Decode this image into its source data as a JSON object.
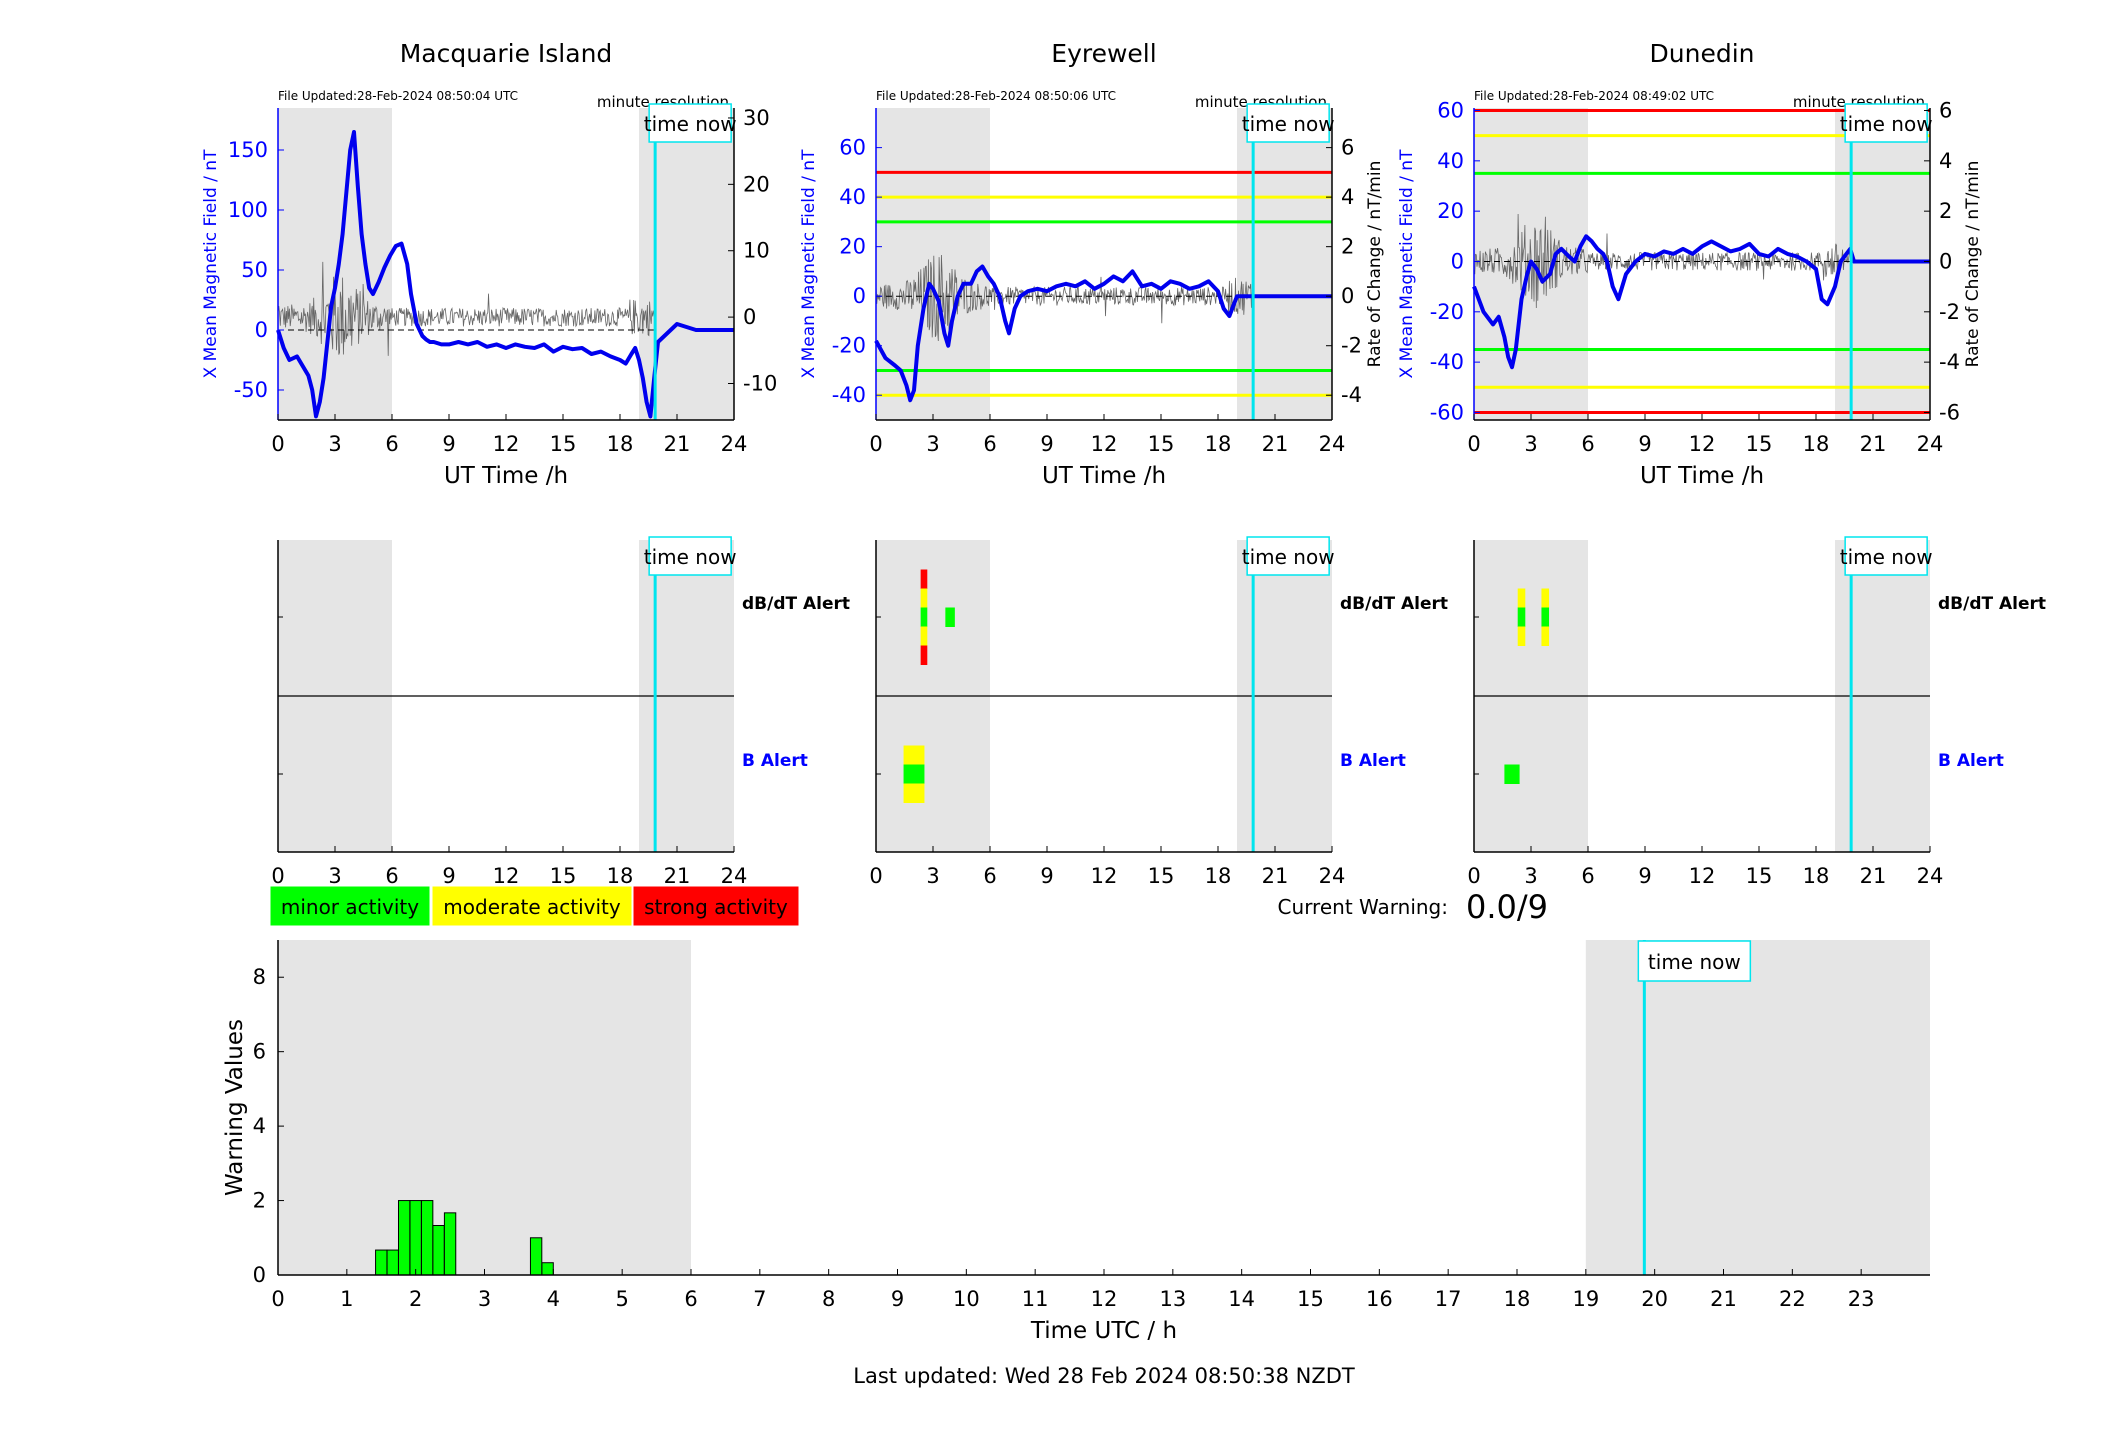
{
  "stations": [
    {
      "name": "Macquarie Island",
      "file_updated": "File Updated:28-Feb-2024 08:50:04 UTC",
      "resolution": "minute resolution",
      "time_now_label": "time now",
      "ylabel_left": "X Mean Magnetic Field / nT",
      "ylabel_right": "",
      "xlabel": "UT Time /h",
      "left_ticks": [
        "-50",
        "0",
        "50",
        "100",
        "150"
      ],
      "right_ticks": [
        "-10",
        "0",
        "10",
        "20",
        "30"
      ],
      "x_ticks": [
        "0",
        "3",
        "6",
        "9",
        "12",
        "15",
        "18",
        "21",
        "24"
      ],
      "ylim_left": [
        -75,
        185
      ],
      "ylim_right": [
        -15.5,
        31.5
      ],
      "thresholds": [],
      "alert_labels": {
        "dbdt": "dB/dT Alert",
        "b": "B Alert"
      },
      "alert_bars": []
    },
    {
      "name": "Eyrewell",
      "file_updated": "File Updated:28-Feb-2024 08:50:06 UTC",
      "resolution": "minute resolution",
      "time_now_label": "time now",
      "ylabel_left": "X Mean Magnetic Field / nT",
      "ylabel_right": "Rate of Change / nT/min",
      "xlabel": "UT Time /h",
      "left_ticks": [
        "-40",
        "-20",
        "0",
        "20",
        "40",
        "60"
      ],
      "right_ticks": [
        "-4",
        "-2",
        "0",
        "2",
        "4",
        "6"
      ],
      "x_ticks": [
        "0",
        "3",
        "6",
        "9",
        "12",
        "15",
        "18",
        "21",
        "24"
      ],
      "ylim_left": [
        -50,
        76
      ],
      "ylim_right": [
        -5,
        7.6
      ],
      "thresholds": [
        {
          "value": 50,
          "color": "#ff0000"
        },
        {
          "value": 40,
          "color": "#ffff00"
        },
        {
          "value": 30,
          "color": "#00ff00"
        },
        {
          "value": -30,
          "color": "#00ff00"
        },
        {
          "value": -40,
          "color": "#ffff00"
        }
      ],
      "alert_labels": {
        "dbdt": "dB/dT Alert",
        "b": "B Alert"
      },
      "alert_bars": [
        {
          "row": "dbdt",
          "t0": 2.35,
          "t1": 2.7,
          "levels": [
            "#ff0000",
            "#ffff00",
            "#00ff00",
            "#ffff00",
            "#ff0000"
          ]
        },
        {
          "row": "dbdt",
          "t0": 3.65,
          "t1": 4.15,
          "levels": [
            "#00ff00"
          ]
        },
        {
          "row": "b",
          "t0": 1.45,
          "t1": 2.55,
          "levels": [
            "#ffff00",
            "#00ff00",
            "#ffff00"
          ]
        }
      ]
    },
    {
      "name": "Dunedin",
      "file_updated": "File Updated:28-Feb-2024 08:49:02 UTC",
      "resolution": "minute resolution",
      "time_now_label": "time now",
      "ylabel_left": "X Mean Magnetic Field / nT",
      "ylabel_right": "Rate of Change / nT/min",
      "xlabel": "UT Time /h",
      "left_ticks": [
        "-60",
        "-40",
        "-20",
        "0",
        "20",
        "40",
        "60"
      ],
      "right_ticks": [
        "-6",
        "-4",
        "-2",
        "0",
        "2",
        "4",
        "6"
      ],
      "x_ticks": [
        "0",
        "3",
        "6",
        "9",
        "12",
        "15",
        "18",
        "21",
        "24"
      ],
      "ylim_left": [
        -63,
        61
      ],
      "ylim_right": [
        -6.3,
        6.1
      ],
      "thresholds": [
        {
          "value": 60,
          "color": "#ff0000"
        },
        {
          "value": 50,
          "color": "#ffff00"
        },
        {
          "value": 35,
          "color": "#00ff00"
        },
        {
          "value": -35,
          "color": "#00ff00"
        },
        {
          "value": -50,
          "color": "#ffff00"
        },
        {
          "value": -60,
          "color": "#ff0000"
        }
      ],
      "alert_labels": {
        "dbdt": "dB/dT Alert",
        "b": "B Alert"
      },
      "alert_bars": [
        {
          "row": "dbdt",
          "t0": 2.3,
          "t1": 2.7,
          "levels": [
            "#ffff00",
            "#00ff00",
            "#ffff00"
          ]
        },
        {
          "row": "dbdt",
          "t0": 3.55,
          "t1": 3.95,
          "levels": [
            "#ffff00",
            "#00ff00",
            "#ffff00"
          ]
        },
        {
          "row": "b",
          "t0": 1.6,
          "t1": 2.4,
          "levels": [
            "#00ff00"
          ]
        }
      ]
    }
  ],
  "shading": {
    "night_ranges": [
      [
        0,
        6
      ],
      [
        19,
        24
      ]
    ],
    "time_now": 19.85
  },
  "legend": [
    {
      "label": "minor activity",
      "color": "#00ff00"
    },
    {
      "label": "moderate activity",
      "color": "#ffff00"
    },
    {
      "label": "strong activity",
      "color": "#ff0000"
    }
  ],
  "current_warning": {
    "label": "Current Warning:",
    "value": "0.0/9"
  },
  "last_updated": "Last updated: Wed 28 Feb 2024 08:50:38 NZDT",
  "chart_data": [
    {
      "type": "line",
      "title": "Macquarie Island",
      "xlabel": "UT Time /h",
      "ylabel": "X Mean Magnetic Field / nT",
      "xlim": [
        0,
        24
      ],
      "ylim": [
        -75,
        185
      ],
      "series": [
        {
          "x": [
            0,
            0.3,
            0.6,
            1.0,
            1.3,
            1.6,
            1.8,
            2.0,
            2.2,
            2.4,
            2.6,
            2.8,
            3.0,
            3.2,
            3.4,
            3.6,
            3.8,
            4.0,
            4.2,
            4.4,
            4.6,
            4.8,
            5.0,
            5.3,
            5.6,
            5.9,
            6.2,
            6.5,
            6.8,
            7.0,
            7.3,
            7.6,
            7.8,
            8.0,
            8.2,
            8.6,
            9.0,
            9.5,
            10.0,
            10.5,
            11.0,
            11.5,
            12.0,
            12.5,
            13.0,
            13.5,
            14.0,
            14.5,
            15.0,
            15.5,
            16.0,
            16.5,
            17.0,
            17.5,
            18.0,
            18.3,
            18.6,
            18.8,
            19.0,
            19.2,
            19.4,
            19.6,
            19.8,
            20.0,
            21.0,
            22.0,
            23.0,
            24.0
          ],
          "y": [
            0,
            -15,
            -25,
            -22,
            -30,
            -38,
            -50,
            -72,
            -60,
            -40,
            -10,
            20,
            35,
            55,
            80,
            115,
            150,
            165,
            120,
            80,
            55,
            35,
            30,
            40,
            52,
            62,
            70,
            72,
            55,
            30,
            5,
            -5,
            -8,
            -10,
            -10,
            -12,
            -12,
            -10,
            -12,
            -10,
            -14,
            -12,
            -15,
            -12,
            -14,
            -15,
            -12,
            -18,
            -14,
            -16,
            -15,
            -20,
            -18,
            -22,
            -25,
            -28,
            -20,
            -15,
            -25,
            -40,
            -60,
            -72,
            -40,
            -10,
            5,
            0,
            0,
            0
          ]
        }
      ]
    },
    {
      "type": "line",
      "title": "Eyrewell",
      "xlabel": "UT Time /h",
      "ylabel": "X Mean Magnetic Field / nT",
      "xlim": [
        0,
        24
      ],
      "ylim": [
        -50,
        76
      ],
      "series": [
        {
          "x": [
            0,
            0.5,
            1.0,
            1.3,
            1.6,
            1.8,
            2.0,
            2.2,
            2.5,
            2.8,
            3.0,
            3.3,
            3.6,
            3.8,
            4.0,
            4.3,
            4.6,
            5.0,
            5.3,
            5.6,
            5.9,
            6.2,
            6.5,
            6.8,
            7.0,
            7.3,
            7.6,
            8.0,
            8.5,
            9.0,
            9.5,
            10.0,
            10.5,
            11.0,
            11.5,
            12.0,
            12.5,
            13.0,
            13.5,
            14.0,
            14.5,
            15.0,
            15.5,
            16.0,
            16.5,
            17.0,
            17.5,
            18.0,
            18.3,
            18.6,
            19.0,
            19.3,
            19.6,
            19.8,
            20.0,
            21.0,
            22.0,
            23.0,
            24.0
          ],
          "y": [
            -18,
            -25,
            -28,
            -30,
            -36,
            -42,
            -38,
            -20,
            -5,
            5,
            3,
            -2,
            -15,
            -20,
            -10,
            0,
            5,
            5,
            10,
            12,
            8,
            5,
            0,
            -10,
            -15,
            -5,
            0,
            2,
            3,
            2,
            4,
            5,
            4,
            6,
            3,
            5,
            8,
            6,
            10,
            4,
            5,
            3,
            6,
            5,
            3,
            4,
            6,
            2,
            -5,
            -8,
            0,
            0,
            0,
            0,
            0,
            0,
            0,
            0,
            0
          ]
        }
      ]
    },
    {
      "type": "line",
      "title": "Dunedin",
      "xlabel": "UT Time /h",
      "ylabel": "X Mean Magnetic Field / nT",
      "xlim": [
        0,
        24
      ],
      "ylim": [
        -63,
        61
      ],
      "series": [
        {
          "x": [
            0,
            0.5,
            1.0,
            1.3,
            1.6,
            1.8,
            2.0,
            2.2,
            2.5,
            2.8,
            3.0,
            3.3,
            3.6,
            4.0,
            4.3,
            4.6,
            5.0,
            5.3,
            5.6,
            5.9,
            6.2,
            6.5,
            6.8,
            7.0,
            7.3,
            7.6,
            8.0,
            8.5,
            9.0,
            9.5,
            10.0,
            10.5,
            11.0,
            11.5,
            12.0,
            12.5,
            13.0,
            13.5,
            14.0,
            14.5,
            15.0,
            15.5,
            16.0,
            16.5,
            17.0,
            17.5,
            18.0,
            18.3,
            18.6,
            19.0,
            19.3,
            19.6,
            19.8,
            20.0,
            21.0,
            22.0,
            23.0,
            24.0
          ],
          "y": [
            -10,
            -20,
            -25,
            -22,
            -30,
            -38,
            -42,
            -35,
            -15,
            -5,
            0,
            -3,
            -8,
            -5,
            3,
            5,
            2,
            0,
            6,
            10,
            8,
            5,
            3,
            0,
            -10,
            -15,
            -5,
            0,
            3,
            2,
            4,
            3,
            5,
            3,
            6,
            8,
            6,
            4,
            5,
            7,
            3,
            2,
            5,
            3,
            2,
            0,
            -3,
            -15,
            -17,
            -10,
            0,
            3,
            5,
            0,
            0,
            0,
            0,
            0
          ]
        }
      ]
    },
    {
      "type": "bar",
      "title": "",
      "xlabel": "Time UTC / h",
      "ylabel": "Warning Values",
      "xlim": [
        0,
        24
      ],
      "ylim": [
        0,
        9
      ],
      "bar_width": 0.165,
      "x": [
        1.5,
        1.667,
        1.833,
        2.0,
        2.167,
        2.333,
        2.5,
        3.75,
        3.917
      ],
      "values": [
        0.67,
        0.67,
        2,
        2,
        2,
        1.33,
        1.67,
        1,
        0.33
      ],
      "color": "#00ff00"
    }
  ],
  "bottom_axes": {
    "y_ticks": [
      "0",
      "2",
      "4",
      "6",
      "8"
    ],
    "x_ticks": [
      "0",
      "1",
      "2",
      "3",
      "4",
      "5",
      "6",
      "7",
      "8",
      "9",
      "10",
      "11",
      "12",
      "13",
      "14",
      "15",
      "16",
      "17",
      "18",
      "19",
      "20",
      "21",
      "22",
      "23"
    ],
    "time_now_label": "time now"
  }
}
